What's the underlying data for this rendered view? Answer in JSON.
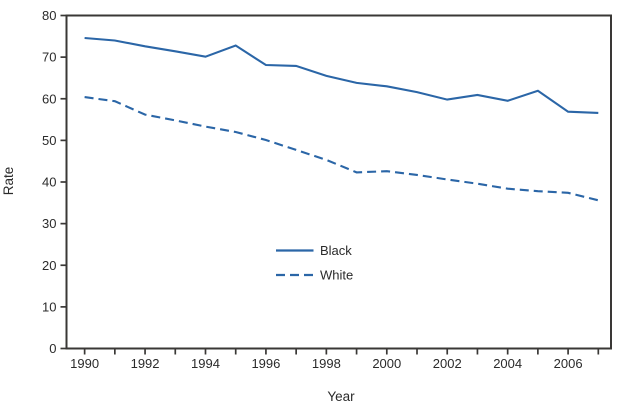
{
  "colors": {
    "line_blue": "#2b66a7",
    "axis": "#3a3836",
    "text": "#2b2b2b",
    "background": "#ffffff"
  },
  "chart_data": {
    "type": "line",
    "title": "",
    "xlabel": "Year",
    "ylabel": "Rate",
    "x": [
      1990,
      1991,
      1992,
      1993,
      1994,
      1995,
      1996,
      1997,
      1998,
      1999,
      2000,
      2001,
      2002,
      2003,
      2004,
      2005,
      2006,
      2007
    ],
    "x_tick_labels": [
      1990,
      1992,
      1994,
      1996,
      1998,
      2000,
      2002,
      2004,
      2006
    ],
    "y_ticks": [
      0,
      10,
      20,
      30,
      40,
      50,
      60,
      70,
      80
    ],
    "xlim": [
      1989.4,
      2007.42
    ],
    "ylim": [
      0,
      80
    ],
    "grid": false,
    "legend_position": "inside-lower-center",
    "series": [
      {
        "name": "Black",
        "line_style": "solid",
        "color": "#2b66a7",
        "values": [
          74.6,
          74.0,
          72.6,
          71.4,
          70.1,
          72.8,
          68.1,
          67.9,
          65.5,
          63.8,
          63.0,
          61.6,
          59.8,
          60.9,
          59.5,
          61.9,
          56.9,
          56.6
        ]
      },
      {
        "name": "White",
        "line_style": "dashed",
        "color": "#2b66a7",
        "values": [
          60.4,
          59.4,
          56.2,
          54.8,
          53.3,
          52.0,
          50.1,
          47.7,
          45.3,
          42.3,
          42.6,
          41.7,
          40.6,
          39.6,
          38.4,
          37.8,
          37.4,
          35.6
        ]
      }
    ]
  }
}
